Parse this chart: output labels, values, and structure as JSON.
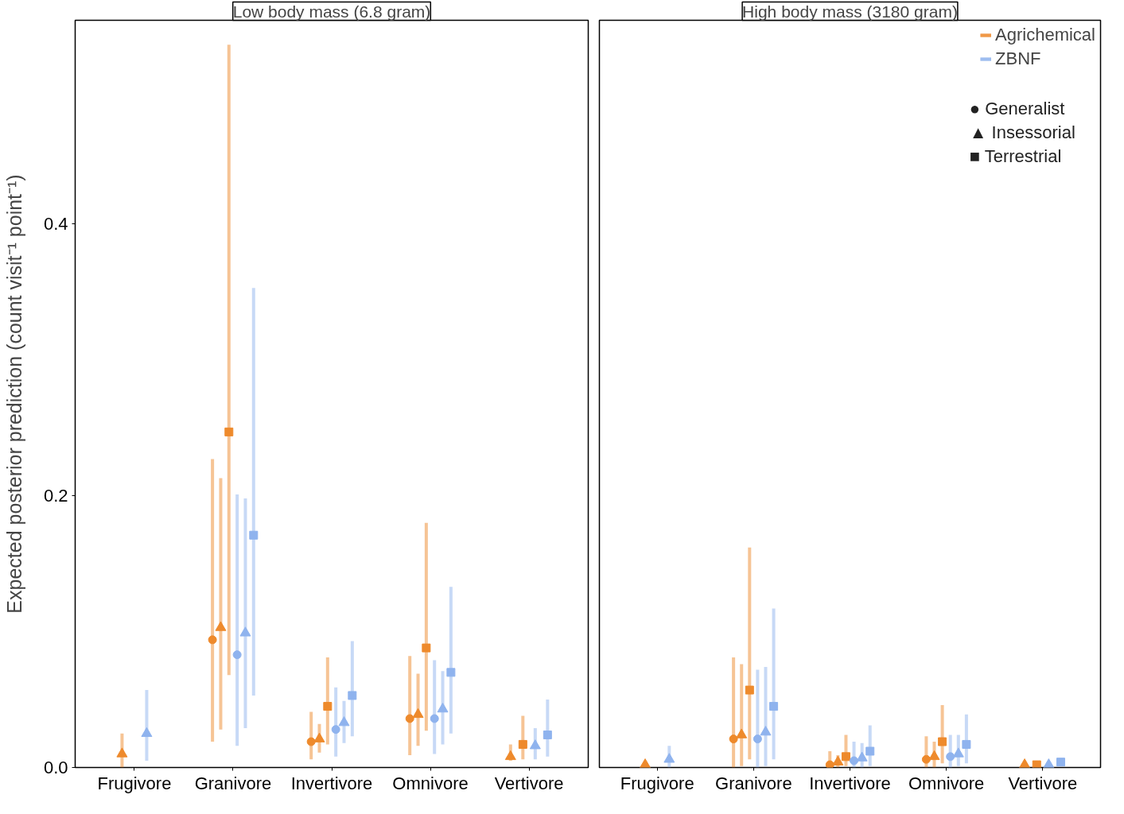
{
  "chart_data": [
    {
      "type": "scatter",
      "title": "Low body mass (6.8 gram)",
      "ylabel": "Expected posterior prediction (count visit⁻¹ point⁻¹)",
      "categories": [
        "Frugivore",
        "Granivore",
        "Invertivore",
        "Omnivore",
        "Vertivore"
      ],
      "ylim": [
        0,
        0.55
      ],
      "yticks": [
        {
          "value": 0,
          "label": "0.0"
        },
        {
          "value": 0.2,
          "label": "0.2"
        },
        {
          "value": 0.4,
          "label": "0.4"
        }
      ],
      "grid": false,
      "series": [
        {
          "color": "#ee8a2c",
          "marker": "circle",
          "values": [
            null,
            0.094,
            0.019,
            0.036,
            null
          ],
          "errors": [
            null,
            [
              0.019,
              0.227
            ],
            [
              0.006,
              0.041
            ],
            [
              0.009,
              0.082
            ],
            null
          ]
        },
        {
          "color": "#ee8a2c",
          "marker": "triangle",
          "values": [
            0.01,
            0.103,
            0.021,
            0.039,
            0.008
          ],
          "errors": [
            [
              0.0,
              0.025
            ],
            [
              0.028,
              0.213
            ],
            [
              0.011,
              0.032
            ],
            [
              0.016,
              0.069
            ],
            [
              0.005,
              0.017
            ]
          ]
        },
        {
          "color": "#ee8a2c",
          "marker": "square",
          "values": [
            null,
            0.247,
            0.045,
            0.088,
            0.017
          ],
          "errors": [
            null,
            [
              0.068,
              0.532
            ],
            [
              0.017,
              0.081
            ],
            [
              0.027,
              0.18
            ],
            [
              0.006,
              0.038
            ]
          ]
        },
        {
          "color": "#8fb3ee",
          "marker": "circle",
          "values": [
            null,
            0.083,
            0.028,
            0.036,
            null
          ],
          "errors": [
            null,
            [
              0.016,
              0.201
            ],
            [
              0.008,
              0.059
            ],
            [
              0.01,
              0.079
            ],
            null
          ]
        },
        {
          "color": "#8fb3ee",
          "marker": "triangle",
          "values": [
            0.025,
            0.099,
            0.033,
            0.043,
            0.016
          ],
          "errors": [
            [
              0.005,
              0.057
            ],
            [
              0.029,
              0.198
            ],
            [
              0.018,
              0.049
            ],
            [
              0.017,
              0.071
            ],
            [
              0.006,
              0.029
            ]
          ]
        },
        {
          "color": "#8fb3ee",
          "marker": "square",
          "values": [
            null,
            0.171,
            0.053,
            0.07,
            0.024
          ],
          "errors": [
            null,
            [
              0.053,
              0.353
            ],
            [
              0.023,
              0.093
            ],
            [
              0.025,
              0.133
            ],
            [
              0.008,
              0.05
            ]
          ]
        }
      ]
    },
    {
      "type": "scatter",
      "title": "High body mass (3180 gram)",
      "legend": "top right",
      "tick_labels": "x",
      "categories": [
        "Frugivore",
        "Granivore",
        "Invertivore",
        "Omnivore",
        "Vertivore"
      ],
      "ylim": [
        0,
        0.55
      ],
      "grid": false,
      "annotations": [
        "● Generalist",
        "▲ Insessorial",
        "■ Terrestrial"
      ],
      "series": [
        {
          "name": "Agrichemical",
          "color": "#ee8a2c",
          "marker": "circle",
          "values": [
            null,
            0.021,
            0.002,
            0.006,
            null
          ],
          "errors": [
            null,
            [
              0.0,
              0.081
            ],
            [
              0.0,
              0.012
            ],
            [
              0.0,
              0.023
            ],
            null
          ]
        },
        {
          "color": "#ee8a2c",
          "marker": "triangle",
          "values": [
            0.002,
            0.024,
            0.004,
            0.008,
            0.002
          ],
          "errors": [
            null,
            [
              0.001,
              0.076
            ],
            [
              0.0,
              0.009
            ],
            [
              0.0,
              0.019
            ],
            null
          ]
        },
        {
          "color": "#ee8a2c",
          "marker": "square",
          "values": [
            null,
            0.057,
            0.008,
            0.019,
            0.002
          ],
          "errors": [
            null,
            [
              0.006,
              0.162
            ],
            [
              0.001,
              0.024
            ],
            [
              0.003,
              0.046
            ],
            null
          ]
        },
        {
          "name": "ZBNF",
          "color": "#8fb3ee",
          "marker": "circle",
          "values": [
            null,
            0.021,
            0.005,
            0.008,
            null
          ],
          "errors": [
            null,
            [
              0.0,
              0.072
            ],
            [
              0.0,
              0.019
            ],
            [
              0.0,
              0.024
            ],
            null
          ]
        },
        {
          "color": "#8fb3ee",
          "marker": "triangle",
          "values": [
            0.006,
            0.026,
            0.007,
            0.01,
            0.002
          ],
          "errors": [
            [
              0.0,
              0.016
            ],
            [
              0.001,
              0.074
            ],
            [
              0.0,
              0.018
            ],
            [
              0.001,
              0.024
            ],
            null
          ]
        },
        {
          "color": "#8fb3ee",
          "marker": "square",
          "values": [
            null,
            0.045,
            0.012,
            0.017,
            0.004
          ],
          "errors": [
            null,
            [
              0.006,
              0.117
            ],
            [
              0.001,
              0.031
            ],
            [
              0.003,
              0.039
            ],
            null
          ]
        }
      ]
    }
  ]
}
